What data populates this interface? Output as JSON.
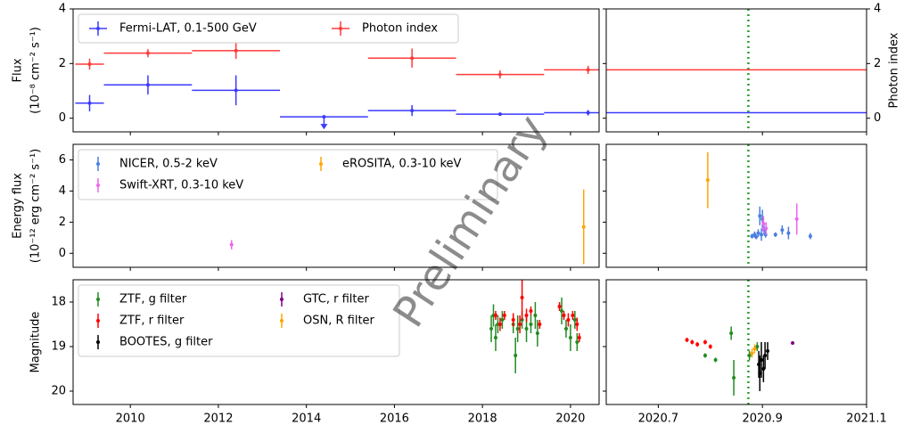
{
  "x_axes": {
    "left": {
      "xlim": [
        2008.7,
        2020.65
      ],
      "xticks": [
        2010,
        2012,
        2014,
        2016,
        2018,
        2020
      ]
    },
    "right": {
      "xlim": [
        2020.6,
        2021.1
      ],
      "xticks": [
        2020.7,
        2020.9,
        2021.1
      ]
    }
  },
  "vline": {
    "x": 2020.873,
    "color": "#2ca02c"
  },
  "watermark": "Preliminary",
  "chart_data": [
    {
      "type": "binned_errorbar",
      "ylabel": [
        "Flux",
        "(10⁻⁸ cm⁻² s⁻¹)"
      ],
      "ylabel_color": "#0000ff",
      "ylim": [
        -0.5,
        4
      ],
      "yticks": [
        0,
        2,
        4
      ],
      "y2label": "Photon index",
      "y2label_color": "#ff0000",
      "y2lim": [
        -0.5,
        4
      ],
      "y2ticks": [
        0,
        2,
        4
      ],
      "legend_columns": 2,
      "series": [
        {
          "name": "Fermi-LAT, 0.1-500 GeV",
          "color": "#3b3bff",
          "x_start": [
            2008.75,
            2009.4,
            2011.4,
            2013.4,
            2015.4,
            2017.4,
            2019.4
          ],
          "x_end": [
            2009.4,
            2011.4,
            2013.4,
            2015.4,
            2017.4,
            2019.4,
            2021.4
          ],
          "values": [
            0.55,
            1.22,
            1.02,
            0.05,
            0.28,
            0.15,
            0.2
          ],
          "errors": [
            0.3,
            0.35,
            0.55,
            0,
            0.2,
            0.05,
            0.1
          ],
          "upper_limits": [
            false,
            false,
            false,
            true,
            false,
            false,
            false
          ]
        },
        {
          "name": "Photon index",
          "color": "#ff3b3b",
          "axis": "y2",
          "x_start": [
            2008.75,
            2009.4,
            2011.4,
            2013.4,
            2015.4,
            2017.4,
            2019.4
          ],
          "x_end": [
            2009.4,
            2011.4,
            2013.4,
            2015.4,
            2017.4,
            2019.4,
            2021.4
          ],
          "values": [
            1.98,
            2.38,
            2.47,
            null,
            2.2,
            1.6,
            1.77
          ],
          "errors": [
            0.2,
            0.15,
            0.3,
            null,
            0.35,
            0.15,
            0.15
          ]
        }
      ]
    },
    {
      "type": "errorbar",
      "ylabel": [
        "Energy flux",
        "(10⁻¹² erg cm⁻² s⁻¹)"
      ],
      "ylabel_color": "#000000",
      "ylim": [
        -0.9,
        7
      ],
      "yticks": [
        0,
        2,
        4,
        6
      ],
      "legend_columns": 2,
      "series": [
        {
          "name": "NICER, 0.5-2 keV",
          "color": "#4a7fe0",
          "x": [
            2020.88,
            2020.885,
            2020.888,
            2020.892,
            2020.895,
            2020.898,
            2020.9,
            2020.903,
            2020.906,
            2020.925,
            2020.938,
            2020.95,
            2020.992
          ],
          "values": [
            1.1,
            1.2,
            1.05,
            1.3,
            2.4,
            1.2,
            2.2,
            1.5,
            1.2,
            1.2,
            1.5,
            1.3,
            1.1
          ],
          "errors": [
            0.15,
            0.2,
            0.15,
            0.25,
            0.6,
            0.4,
            0.6,
            0.3,
            0.2,
            0.15,
            0.3,
            0.4,
            0.2
          ]
        },
        {
          "name": "Swift-XRT, 0.3-10 keV",
          "color": "#ee66ee",
          "x": [
            2012.3,
            2020.902,
            2020.907,
            2020.966
          ],
          "values": [
            0.55,
            1.9,
            1.6,
            2.2
          ],
          "errors": [
            0.3,
            0.5,
            0.4,
            1.0
          ]
        },
        {
          "name": "eROSITA, 0.3-10 keV",
          "color": "#ffa500",
          "x": [
            2020.3,
            2020.795
          ],
          "values": [
            1.7,
            4.7
          ],
          "errors": [
            2.4,
            1.8
          ]
        }
      ]
    },
    {
      "type": "errorbar",
      "ylabel": [
        "Magnitude"
      ],
      "ylabel_color": "#000000",
      "ylim": [
        20.3,
        17.5
      ],
      "yticks": [
        18,
        19,
        20
      ],
      "legend_columns": 2,
      "series": [
        {
          "name": "ZTF, g filter",
          "color": "#228b22",
          "x": [
            2018.2,
            2018.25,
            2018.3,
            2018.35,
            2018.45,
            2018.7,
            2018.75,
            2018.8,
            2018.9,
            2019.0,
            2019.1,
            2019.2,
            2019.25,
            2019.8,
            2019.9,
            2020.0,
            2020.1,
            2020.15,
            2020.79,
            2020.81,
            2020.84,
            2020.845,
            2020.875,
            2020.89
          ],
          "values": [
            18.6,
            18.3,
            18.8,
            18.5,
            18.4,
            18.5,
            19.2,
            18.6,
            18.4,
            18.6,
            18.5,
            18.3,
            18.7,
            18.2,
            18.6,
            18.8,
            18.4,
            18.9,
            19.2,
            19.3,
            18.7,
            19.7,
            19.2,
            19.0
          ],
          "errors": [
            0.3,
            0.25,
            0.3,
            0.2,
            0.2,
            0.2,
            0.4,
            0.3,
            0.2,
            0.3,
            0.2,
            0.3,
            0.3,
            0.3,
            0.2,
            0.3,
            0.2,
            0.2,
            0.05,
            0.05,
            0.15,
            0.4,
            0.1,
            0.1
          ]
        },
        {
          "name": "ZTF, r filter",
          "color": "#ff0000",
          "x": [
            2018.3,
            2018.4,
            2018.5,
            2018.7,
            2018.85,
            2018.9,
            2019.0,
            2019.1,
            2019.3,
            2019.75,
            2019.85,
            2019.95,
            2020.05,
            2020.15,
            2020.2,
            2020.755,
            2020.765,
            2020.775,
            2020.79,
            2020.8
          ],
          "values": [
            18.3,
            18.5,
            18.3,
            18.4,
            18.5,
            17.9,
            18.3,
            18.2,
            18.5,
            18.1,
            18.3,
            18.4,
            18.3,
            18.5,
            18.8,
            18.85,
            18.9,
            18.95,
            18.9,
            19.0
          ],
          "errors": [
            0.1,
            0.15,
            0.1,
            0.15,
            0.2,
            0.5,
            0.15,
            0.1,
            0.1,
            0.1,
            0.1,
            0.15,
            0.1,
            0.15,
            0.1,
            0.05,
            0.05,
            0.05,
            0.05,
            0.05
          ]
        },
        {
          "name": "BOOTES, g filter",
          "color": "#000000",
          "x": [
            2020.893,
            2020.895,
            2020.898,
            2020.902,
            2020.905,
            2020.91
          ],
          "values": [
            19.4,
            19.6,
            19.3,
            19.5,
            19.2,
            19.1
          ],
          "errors": [
            0.3,
            0.4,
            0.4,
            0.3,
            0.3,
            0.2
          ]
        },
        {
          "name": "GTC, r filter",
          "color": "#800080",
          "x": [
            2020.958
          ],
          "values": [
            18.92
          ],
          "errors": [
            0.03
          ]
        },
        {
          "name": "OSN, R filter",
          "color": "#ffa500",
          "x": [
            2020.88,
            2020.885
          ],
          "values": [
            19.15,
            19.05
          ],
          "errors": [
            0.1,
            0.1
          ]
        }
      ]
    }
  ]
}
